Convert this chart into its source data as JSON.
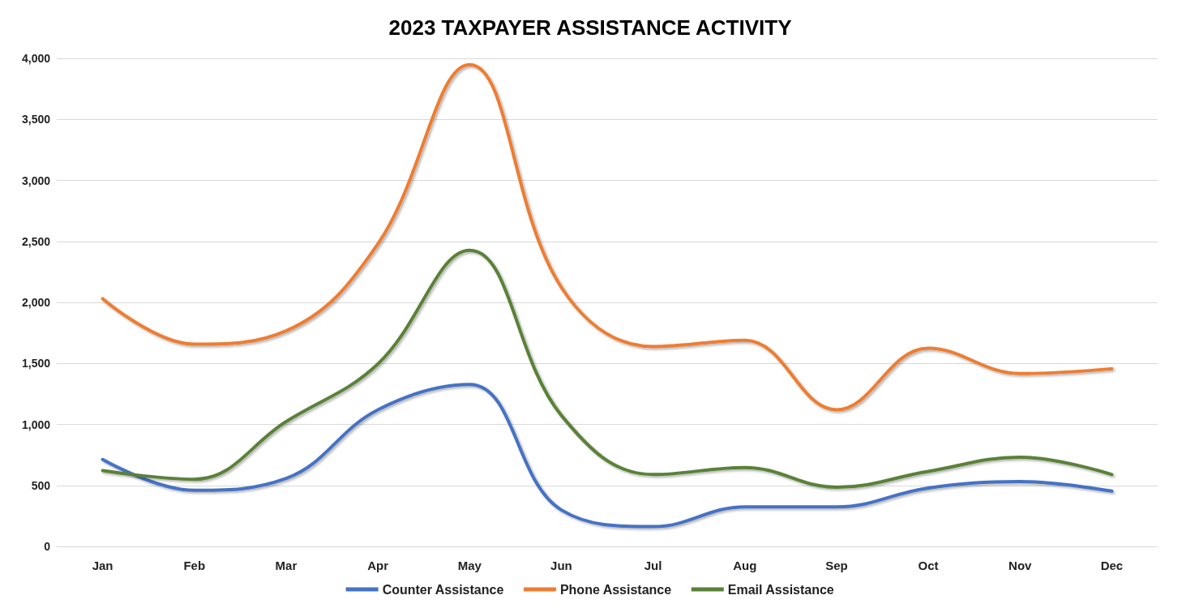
{
  "chart_data": {
    "type": "line",
    "title": "2023 TAXPAYER ASSISTANCE ACTIVITY",
    "categories": [
      "Jan",
      "Feb",
      "Mar",
      "Apr",
      "May",
      "Jun",
      "Jul",
      "Aug",
      "Sep",
      "Oct",
      "Nov",
      "Dec"
    ],
    "series": [
      {
        "name": "Counter Assistance",
        "color": "#4472c4",
        "values": [
          712,
          460,
          557,
          1120,
          1327,
          298,
          162,
          324,
          324,
          479,
          531,
          453
        ]
      },
      {
        "name": "Phone Assistance",
        "color": "#ed7d31",
        "values": [
          2030,
          1657,
          1767,
          2479,
          3948,
          2123,
          1638,
          1689,
          1120,
          1625,
          1417,
          1456
        ]
      },
      {
        "name": "Email Assistance",
        "color": "#5a8137",
        "values": [
          621,
          550,
          1023,
          1495,
          2427,
          1074,
          589,
          647,
          485,
          615,
          731,
          589
        ]
      }
    ],
    "ylim": [
      0,
      4000
    ],
    "yticks": [
      {
        "value": 0,
        "label": "0"
      },
      {
        "value": 500,
        "label": "500"
      },
      {
        "value": 1000,
        "label": "1,000"
      },
      {
        "value": 1500,
        "label": "1,500"
      },
      {
        "value": 2000,
        "label": "2,000"
      },
      {
        "value": 2500,
        "label": "2,500"
      },
      {
        "value": 3000,
        "label": "3,000"
      },
      {
        "value": 3500,
        "label": "3,500"
      },
      {
        "value": 4000,
        "label": "4,000"
      }
    ],
    "grid": "y",
    "legend": "bottom",
    "marker": "none",
    "line_style": "solid"
  }
}
